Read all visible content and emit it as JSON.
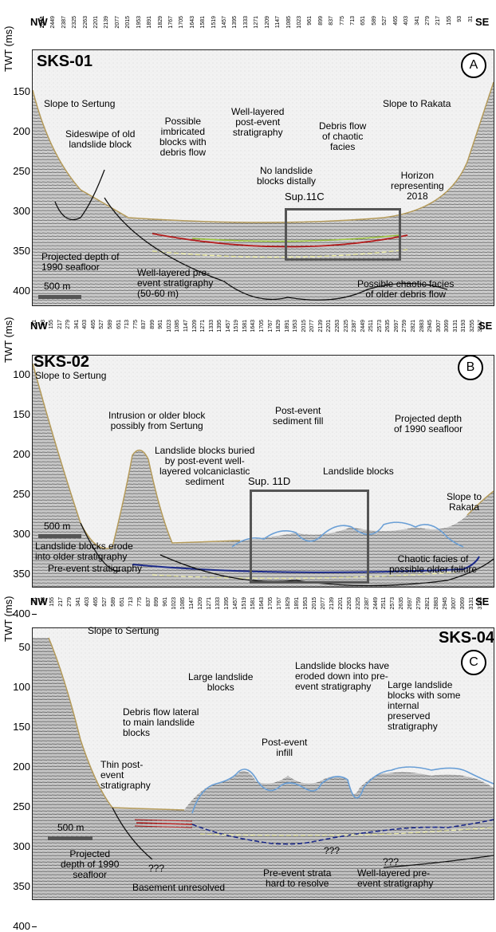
{
  "panels": [
    {
      "id": "A",
      "title": "SKS-01",
      "axis_label": "TWT (ms)",
      "left_dir": "NW",
      "right_dir": "SE",
      "ticks": [
        "150",
        "200",
        "250",
        "300",
        "350",
        "400"
      ],
      "traces": [
        "2511",
        "2449",
        "2387",
        "2325",
        "2263",
        "2201",
        "2139",
        "2077",
        "2015",
        "1953",
        "1891",
        "1829",
        "1767",
        "1705",
        "1643",
        "1581",
        "1519",
        "1457",
        "1395",
        "1333",
        "1271",
        "1209",
        "1147",
        "1085",
        "1023",
        "961",
        "899",
        "837",
        "775",
        "713",
        "651",
        "589",
        "527",
        "465",
        "403",
        "341",
        "279",
        "217",
        "155",
        "93",
        "31"
      ],
      "scale": "500 m",
      "box_label": "Sup.11C",
      "annotations": {
        "slope_left": "Slope to Sertung",
        "slope_right": "Slope to Rakata",
        "sideswipe": "Sideswipe of old\nlandslide block",
        "imbricated": "Possible\nimbricated\nblocks with\ndebris flow",
        "well_layered_post": "Well-layered\npost-event\nstratigraphy",
        "debris_flow": "Debris flow\nof chaotic\nfacies",
        "no_landslide": "No landslide\nblocks distally",
        "horizon": "Horizon\nrepresenting\n2018",
        "projected": "Projected depth of\n1990 seafloor",
        "well_layered_pre": "Well-layered pre-\nevent stratigraphy\n(50-60 m)",
        "chaotic_older": "Possible chaotic facies\nof older debris flow"
      }
    },
    {
      "id": "B",
      "title": "SKS-02",
      "axis_label": "TWT (ms)",
      "left_dir": "NW",
      "right_dir": "SE",
      "ticks": [
        "100",
        "150",
        "200",
        "250",
        "300",
        "350",
        "400"
      ],
      "traces": [
        "31",
        "93",
        "155",
        "217",
        "279",
        "341",
        "403",
        "465",
        "527",
        "589",
        "651",
        "713",
        "775",
        "837",
        "899",
        "961",
        "1023",
        "1085",
        "1147",
        "1209",
        "1271",
        "1333",
        "1395",
        "1457",
        "1519",
        "1581",
        "1643",
        "1705",
        "1767",
        "1829",
        "1891",
        "1953",
        "2015",
        "2077",
        "2139",
        "2201",
        "2263",
        "2325",
        "2387",
        "2449",
        "2511",
        "2573",
        "2635",
        "2697",
        "2759",
        "2821",
        "2883",
        "2945",
        "3007",
        "3069",
        "3131",
        "3193",
        "3255",
        "3317"
      ],
      "scale": "500 m",
      "box_label": "Sup. 11D",
      "annotations": {
        "slope_left": "Slope to Sertung",
        "intrusion": "Intrusion or older block\npossibly from Sertung",
        "post_event_fill": "Post-event\nsediment fill",
        "projected": "Projected depth\nof 1990 seafloor",
        "buried": "Landslide blocks buried\nby post-event well-\nlayered volcaniclastic\nsediment",
        "landslide_blocks": "Landslide blocks",
        "slope_right": "Slope to\nRakata",
        "erode": "Landslide blocks erode\ninto older stratigraphy",
        "pre_event": "Pre-event stratigraphy",
        "chaotic": "Chaotic facies of\npossible older failure"
      }
    },
    {
      "id": "C",
      "title": "SKS-04",
      "axis_label": "TWT (ms)",
      "left_dir": "NW",
      "right_dir": "SE",
      "ticks": [
        "50",
        "100",
        "150",
        "200",
        "250",
        "300",
        "350",
        "400"
      ],
      "traces": [
        "31",
        "93",
        "155",
        "217",
        "279",
        "341",
        "403",
        "465",
        "527",
        "589",
        "651",
        "713",
        "775",
        "837",
        "899",
        "961",
        "1023",
        "1085",
        "1147",
        "1209",
        "1271",
        "1333",
        "1395",
        "1457",
        "1519",
        "1581",
        "1643",
        "1705",
        "1767",
        "1829",
        "1891",
        "1953",
        "2015",
        "2077",
        "2139",
        "2201",
        "2263",
        "2325",
        "2387",
        "2449",
        "2511",
        "2573",
        "2635",
        "2697",
        "2759",
        "2821",
        "2883",
        "2945",
        "3007",
        "3069",
        "3131",
        "3193"
      ],
      "scale": "500 m",
      "annotations": {
        "slope_left": "Slope to Sertung",
        "large_blocks": "Large landslide\nblocks",
        "eroded_down": "Landslide blocks have\neroded down into pre-\nevent stratigraphy",
        "large_preserved": "Large landslide\nblocks with some\ninternal\npreserved\nstratigraphy",
        "debris_lateral": "Debris flow lateral\nto main landslide\nblocks",
        "post_infill": "Post-event\ninfill",
        "thin_post": "Thin post-\nevent\nstratigraphy",
        "q1": "???",
        "q2": "???",
        "q3": "???",
        "projected": "Projected\ndepth of 1990\nseafloor",
        "basement": "Basement unresolved",
        "pre_hard": "Pre-event strata\nhard to resolve",
        "well_layered_pre": "Well-layered pre-\nevent stratigraphy"
      }
    }
  ],
  "colors": {
    "seafloor": "#b59b5a",
    "horizon_red": "#b41e1e",
    "horizon_green": "#9bc23c",
    "blue_outline": "#6a9fd6",
    "navy": "#1c2a8a",
    "dashed_yellow": "#e8e8a0"
  }
}
